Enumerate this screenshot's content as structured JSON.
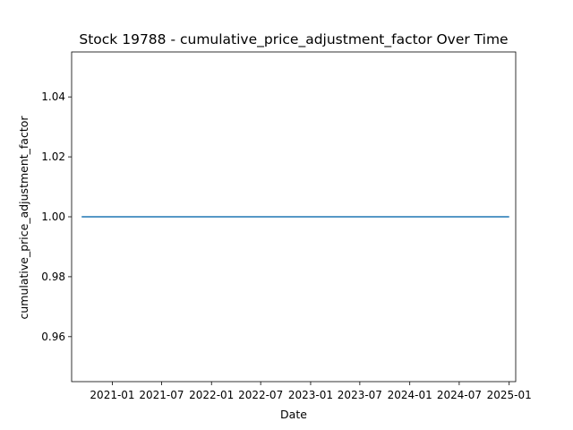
{
  "chart_data": {
    "type": "line",
    "title": "Stock 19788 - cumulative_price_adjustment_factor Over Time",
    "xlabel": "Date",
    "ylabel": "cumulative_price_adjustment_factor",
    "x_ticks": [
      "2021-01",
      "2021-07",
      "2022-01",
      "2022-07",
      "2023-01",
      "2023-07",
      "2024-01",
      "2024-07",
      "2025-01"
    ],
    "y_ticks": [
      "0.96",
      "0.98",
      "1.00",
      "1.02",
      "1.04"
    ],
    "xlim": [
      "2020-08-04",
      "2025-01-25"
    ],
    "ylim": [
      0.945,
      1.055
    ],
    "grid": false,
    "series": [
      {
        "color": "#1f77b4",
        "x": [
          "2020-09-10",
          "2025-01-01"
        ],
        "y": [
          1.0,
          1.0
        ]
      }
    ]
  }
}
